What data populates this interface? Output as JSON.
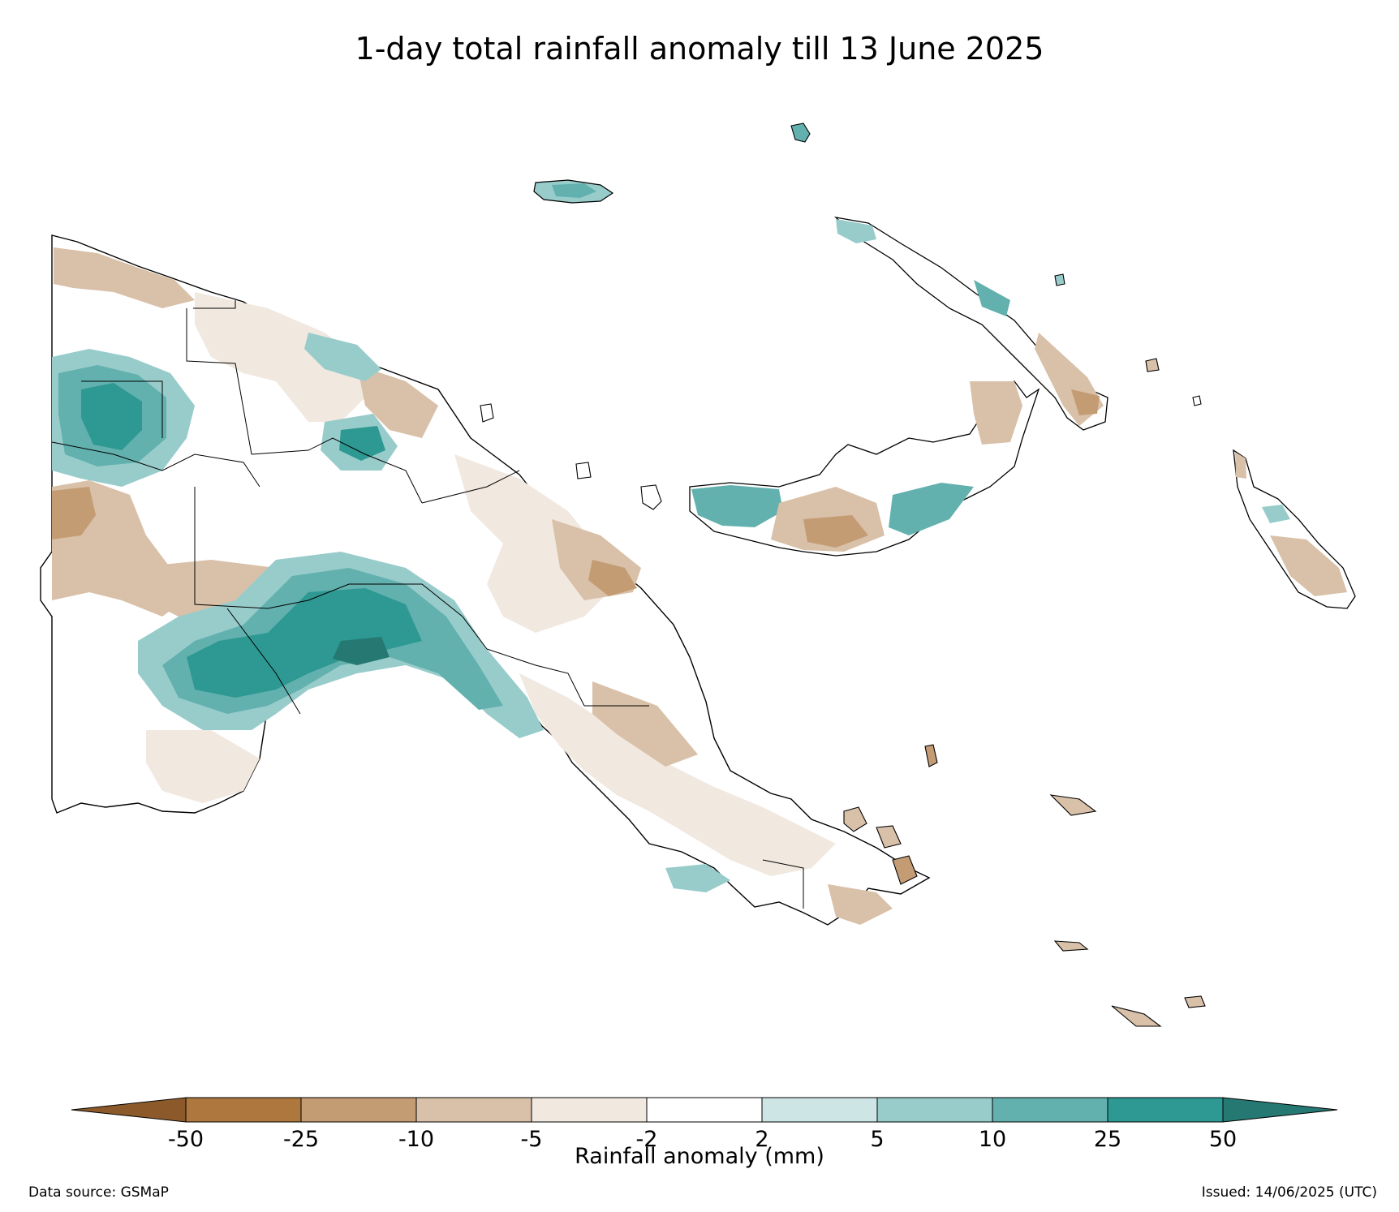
{
  "title": "1-day total rainfall anomaly till 13 June 2025",
  "colorbar": {
    "label": "Rainfall anomaly (mm)",
    "ticks": [
      "-50",
      "-25",
      "-10",
      "-5",
      "-2",
      "2",
      "5",
      "10",
      "25",
      "50"
    ],
    "bins": [
      {
        "range": "< -50",
        "color": "#8c5a2a"
      },
      {
        "range": "-50 to -25",
        "color": "#ad773e"
      },
      {
        "range": "-25 to -10",
        "color": "#c49c74"
      },
      {
        "range": "-10 to -5",
        "color": "#d9c0a8"
      },
      {
        "range": "-5 to -2",
        "color": "#f1e8e0"
      },
      {
        "range": "-2 to 2",
        "color": "#ffffff"
      },
      {
        "range": "2 to 5",
        "color": "#cde6e5"
      },
      {
        "range": "5 to 10",
        "color": "#98cccb"
      },
      {
        "range": "10 to 25",
        "color": "#62b1ae"
      },
      {
        "range": "25 to 50",
        "color": "#2e9892"
      },
      {
        "range": "> 50",
        "color": "#267872"
      }
    ]
  },
  "footer": {
    "source": "Data source: GSMaP",
    "issued": "Issued: 14/06/2025 (UTC)"
  }
}
